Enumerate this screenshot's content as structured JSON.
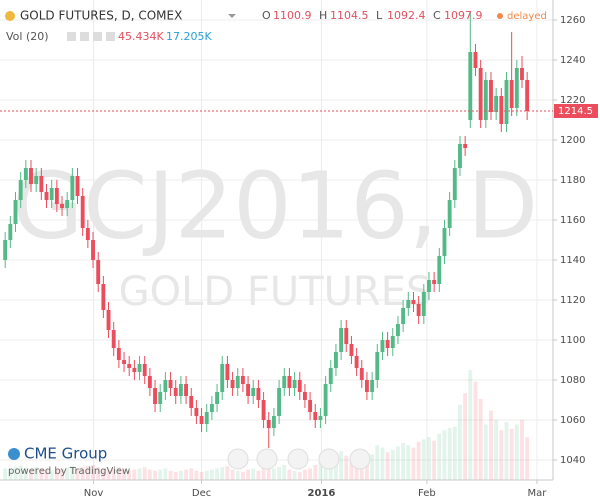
{
  "chart_data": {
    "type": "candlestick",
    "title": "GOLD FUTURES, D, COMEX",
    "ohlc_legend": [
      {
        "label": "O",
        "value": 1100.9
      },
      {
        "label": "H",
        "value": 1104.5
      },
      {
        "label": "L",
        "value": 1092.4
      },
      {
        "label": "C",
        "value": 1097.9
      }
    ],
    "status": "delayed",
    "volume_legend": {
      "label": "Vol (20)",
      "values": [
        "45.434K",
        "17.205K"
      ]
    },
    "watermark": [
      "GCJ2016, D",
      "GOLD FUTURES"
    ],
    "branding": [
      "CME Group",
      "powered by TradingView"
    ],
    "open": [
      1140,
      1150,
      1158,
      1170,
      1180,
      1186,
      1178,
      1182,
      1174,
      1170,
      1176,
      1168,
      1166,
      1170,
      1182,
      1172,
      1156,
      1150,
      1140,
      1128,
      1115,
      1105,
      1096,
      1090,
      1088,
      1086,
      1084,
      1088,
      1082,
      1076,
      1068,
      1074,
      1080,
      1076,
      1072,
      1078,
      1072,
      1066,
      1062,
      1058,
      1064,
      1068,
      1074,
      1088,
      1080,
      1076,
      1082,
      1078,
      1072,
      1076,
      1070,
      1060,
      1056,
      1062,
      1076,
      1082,
      1076,
      1080,
      1074,
      1070,
      1064,
      1060,
      1062,
      1078,
      1086,
      1094,
      1106,
      1098,
      1092,
      1086,
      1080,
      1074,
      1080,
      1094,
      1100,
      1096,
      1102,
      1108,
      1116,
      1120,
      1118,
      1112,
      1124,
      1130,
      1128,
      1142,
      1156,
      1170,
      1186,
      1198,
      1210,
      1244,
      1236,
      1210,
      1230,
      1214,
      1222,
      1208,
      1230,
      1216,
      1236,
      1230
    ],
    "high": [
      1154,
      1162,
      1174,
      1184,
      1190,
      1190,
      1186,
      1186,
      1178,
      1180,
      1180,
      1172,
      1174,
      1186,
      1186,
      1176,
      1160,
      1154,
      1144,
      1132,
      1119,
      1109,
      1100,
      1094,
      1092,
      1090,
      1092,
      1092,
      1086,
      1080,
      1078,
      1084,
      1084,
      1080,
      1082,
      1082,
      1076,
      1070,
      1066,
      1068,
      1072,
      1078,
      1092,
      1092,
      1084,
      1086,
      1086,
      1082,
      1080,
      1080,
      1074,
      1064,
      1066,
      1080,
      1086,
      1086,
      1084,
      1084,
      1078,
      1074,
      1068,
      1066,
      1082,
      1090,
      1098,
      1110,
      1110,
      1102,
      1096,
      1090,
      1084,
      1084,
      1098,
      1104,
      1104,
      1106,
      1112,
      1120,
      1124,
      1124,
      1122,
      1128,
      1134,
      1134,
      1146,
      1160,
      1174,
      1190,
      1202,
      1202,
      1264,
      1248,
      1240,
      1234,
      1234,
      1226,
      1226,
      1234,
      1254,
      1240,
      1242,
      1234
    ],
    "low": [
      1136,
      1146,
      1154,
      1166,
      1176,
      1174,
      1174,
      1170,
      1166,
      1166,
      1164,
      1162,
      1162,
      1166,
      1168,
      1152,
      1146,
      1136,
      1124,
      1111,
      1101,
      1092,
      1086,
      1084,
      1082,
      1080,
      1080,
      1078,
      1072,
      1064,
      1064,
      1070,
      1072,
      1068,
      1068,
      1068,
      1062,
      1058,
      1054,
      1054,
      1060,
      1064,
      1070,
      1076,
      1072,
      1072,
      1074,
      1068,
      1068,
      1066,
      1056,
      1046,
      1052,
      1058,
      1072,
      1072,
      1072,
      1070,
      1066,
      1060,
      1056,
      1056,
      1058,
      1074,
      1082,
      1090,
      1094,
      1088,
      1082,
      1076,
      1070,
      1070,
      1076,
      1090,
      1092,
      1092,
      1098,
      1104,
      1112,
      1114,
      1108,
      1108,
      1120,
      1124,
      1124,
      1138,
      1152,
      1166,
      1182,
      1192,
      1206,
      1232,
      1206,
      1206,
      1210,
      1210,
      1204,
      1204,
      1212,
      1212,
      1226,
      1210
    ],
    "close": [
      1150,
      1158,
      1170,
      1180,
      1186,
      1178,
      1182,
      1174,
      1170,
      1176,
      1168,
      1166,
      1170,
      1182,
      1172,
      1156,
      1150,
      1140,
      1128,
      1115,
      1105,
      1096,
      1090,
      1088,
      1086,
      1084,
      1088,
      1082,
      1076,
      1068,
      1074,
      1080,
      1076,
      1072,
      1078,
      1072,
      1066,
      1062,
      1058,
      1064,
      1068,
      1074,
      1088,
      1080,
      1076,
      1082,
      1078,
      1072,
      1076,
      1070,
      1060,
      1056,
      1062,
      1076,
      1082,
      1076,
      1080,
      1074,
      1070,
      1064,
      1060,
      1062,
      1078,
      1086,
      1094,
      1106,
      1098,
      1092,
      1086,
      1080,
      1074,
      1080,
      1094,
      1100,
      1096,
      1102,
      1108,
      1116,
      1120,
      1118,
      1112,
      1124,
      1130,
      1128,
      1142,
      1156,
      1170,
      1186,
      1198,
      1196,
      1244,
      1236,
      1210,
      1230,
      1214,
      1222,
      1208,
      1230,
      1216,
      1236,
      1230,
      1214.5
    ],
    "volume": [
      20,
      18,
      22,
      25,
      20,
      18,
      22,
      20,
      18,
      16,
      18,
      20,
      22,
      24,
      20,
      22,
      24,
      26,
      22,
      20,
      18,
      20,
      22,
      18,
      16,
      18,
      20,
      22,
      18,
      16,
      18,
      20,
      16,
      14,
      16,
      18,
      20,
      16,
      14,
      16,
      18,
      20,
      22,
      24,
      18,
      16,
      14,
      18,
      20,
      16,
      22,
      24,
      20,
      22,
      26,
      18,
      16,
      14,
      18,
      20,
      26,
      30,
      40,
      38,
      44,
      50,
      42,
      36,
      40,
      34,
      38,
      44,
      60,
      56,
      48,
      52,
      58,
      64,
      60,
      56,
      66,
      70,
      74,
      68,
      80,
      86,
      90,
      92,
      130,
      150,
      190,
      170,
      140,
      96,
      120,
      104,
      86,
      100,
      88,
      96,
      104,
      74
    ],
    "up_color": "#53b987",
    "down_color": "#eb4d5c",
    "last_price": 1214.5,
    "ylim": [
      1030,
      1270
    ],
    "yticks": [
      1040,
      1060,
      1080,
      1100,
      1120,
      1140,
      1160,
      1180,
      1200,
      1220,
      1240,
      1260
    ],
    "xlim": [
      -1,
      106
    ],
    "xticks": [
      {
        "value": 17.1,
        "label": "Nov"
      },
      {
        "value": 38,
        "label": "Dec"
      },
      {
        "value": 61.2,
        "label": "2016"
      },
      {
        "value": 81.6,
        "label": "Feb"
      },
      {
        "value": 102.9,
        "label": "Mar"
      }
    ],
    "grid": true
  }
}
